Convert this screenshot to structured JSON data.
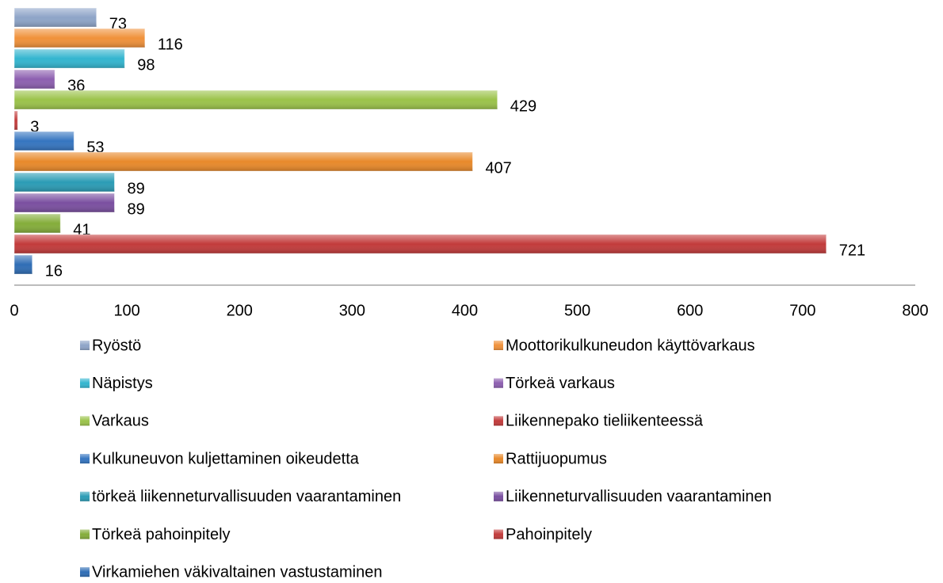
{
  "chart_data": {
    "type": "bar",
    "orientation": "horizontal",
    "series": [
      {
        "name": "Ryöstö",
        "color": "#8ea4c8",
        "values": [
          73
        ]
      },
      {
        "name": "Moottorikulkuneudon käyttövarkaus",
        "color": "#f0913a",
        "values": [
          116
        ]
      },
      {
        "name": "Näpistys",
        "color": "#33b5cf",
        "values": [
          98
        ]
      },
      {
        "name": "Törkeä varkaus",
        "color": "#8d5fb0",
        "values": [
          36
        ]
      },
      {
        "name": "Varkaus",
        "color": "#9bc34a",
        "values": [
          429
        ]
      },
      {
        "name": "Liikennepako tieliikenteessä",
        "color": "#c23b3b",
        "values": [
          3
        ]
      },
      {
        "name": "Kulkuneuvon kuljettaminen oikeudetta",
        "color": "#3575c0",
        "values": [
          53
        ]
      },
      {
        "name": "Rattijuopumus",
        "color": "#e8892a",
        "values": [
          407
        ]
      },
      {
        "name": "törkeä liikenneturvallisuuden vaarantaminen",
        "color": "#2b9cb5",
        "values": [
          89
        ]
      },
      {
        "name": "Liikenneturvallisuuden vaarantaminen",
        "color": "#7a4fa0",
        "values": [
          89
        ]
      },
      {
        "name": "Törkeä pahoinpitely",
        "color": "#84ad3a",
        "values": [
          41
        ]
      },
      {
        "name": "Pahoinpitely",
        "color": "#c23b3b",
        "values": [
          721
        ]
      },
      {
        "name": "Virkamiehen väkivaltainen vastustaminen",
        "color": "#2f6db5",
        "values": [
          16
        ]
      }
    ],
    "xlim": [
      0,
      800
    ],
    "xticks": [
      0,
      100,
      200,
      300,
      400,
      500,
      600,
      700,
      800
    ],
    "grid": false,
    "legend": "bottom"
  }
}
